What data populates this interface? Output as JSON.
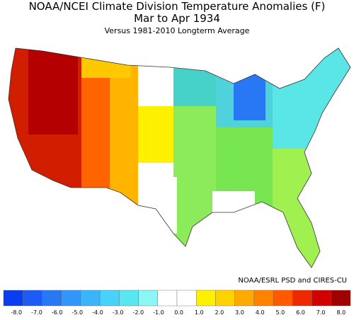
{
  "header": {
    "title": "NOAA/NCEI Climate Division Temperature Anomalies (F)",
    "period": "Mar to Apr 1934",
    "subtitle": "Versus 1981-2010 Longterm Average"
  },
  "credit": "NOAA/ESRL PSD and CIRES-CU",
  "colorbar": {
    "labels": [
      "-8.0",
      "-7.0",
      "-6.0",
      "-5.0",
      "-4.0",
      "-3.0",
      "-2.0",
      "-1.0",
      "0.0",
      "1.0",
      "2.0",
      "3.0",
      "4.0",
      "5.0",
      "6.0",
      "7.0",
      "8.0"
    ],
    "colors": [
      "#0a3cf0",
      "#1e5af5",
      "#2878f5",
      "#3296fa",
      "#3cb4fa",
      "#46d2fa",
      "#5ae6f0",
      "#8cf5f5",
      "#ffffff",
      "#ffffff",
      "#fff000",
      "#ffd200",
      "#ffaa00",
      "#ff8200",
      "#ff5a00",
      "#f02800",
      "#d20000",
      "#a00000"
    ]
  }
}
